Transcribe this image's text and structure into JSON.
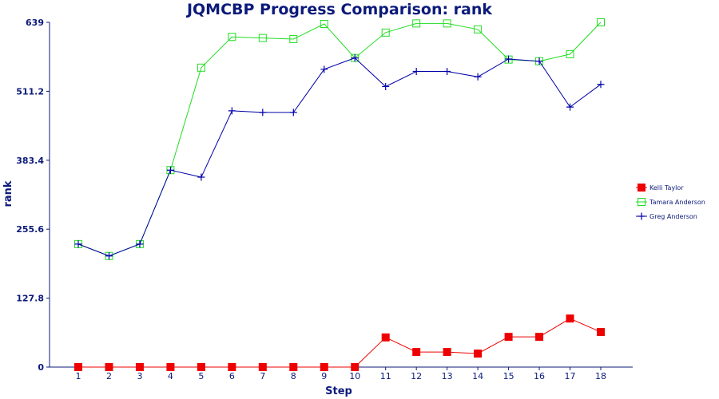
{
  "chart_data": {
    "type": "line",
    "title": "JQMCBP Progress Comparison: rank",
    "xlabel": "Step",
    "ylabel": "rank",
    "x": [
      1,
      2,
      3,
      4,
      5,
      6,
      7,
      8,
      9,
      10,
      11,
      12,
      13,
      14,
      15,
      16,
      17,
      18
    ],
    "ylim": [
      0,
      639
    ],
    "yticks": [
      "0",
      "127.8",
      "255.6",
      "383.4",
      "511.2",
      "639"
    ],
    "ytick_values": [
      0,
      127.8,
      255.6,
      383.4,
      511.2,
      639
    ],
    "grid": false,
    "legend_position": "right",
    "series": [
      {
        "name": "Kelli Taylor",
        "color": "#ee0000",
        "marker": "filled-square",
        "values": [
          0,
          0,
          0,
          0,
          0,
          0,
          0,
          0,
          0,
          0,
          55,
          28,
          28,
          25,
          56,
          56,
          90,
          65
        ]
      },
      {
        "name": "Tamara Anderson",
        "color": "#22dd22",
        "marker": "open-square",
        "values": [
          228,
          206,
          228,
          365,
          555,
          612,
          610,
          608,
          636,
          573,
          620,
          637,
          637,
          626,
          570,
          567,
          580,
          639
        ]
      },
      {
        "name": "Greg Anderson",
        "color": "#0000aa",
        "marker": "plus",
        "values": [
          228,
          206,
          228,
          365,
          352,
          475,
          472,
          472,
          552,
          573,
          520,
          548,
          548,
          538,
          571,
          567,
          482,
          524
        ]
      }
    ]
  }
}
